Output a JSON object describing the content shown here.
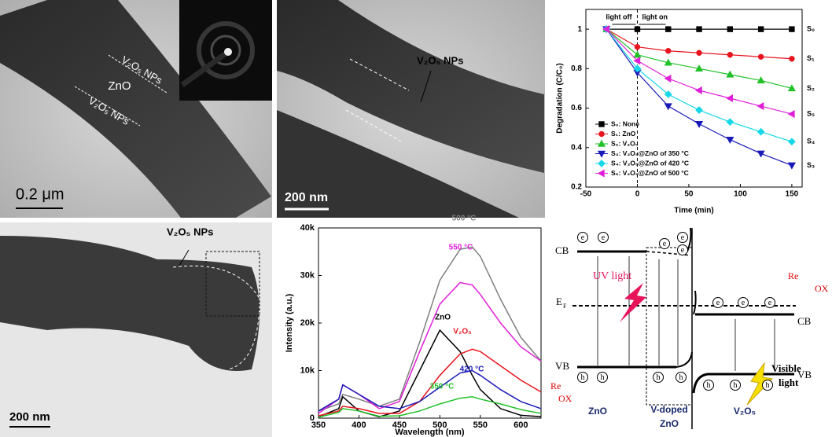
{
  "images": [
    {
      "labels": [
        "V₂O₅ NPs",
        "ZnO",
        "V₂O₅ NPs"
      ],
      "scale_bar": "0.2 μm"
    },
    {
      "labels": [
        "V₂O₅ NPs"
      ],
      "scale_bar": "200 nm"
    },
    {
      "labels": [
        "V₂O₅ NPs"
      ],
      "scale_bar": "200 nm"
    }
  ],
  "chart_data": [
    {
      "type": "line",
      "xlabel": "Time (min)",
      "ylabel": "Degradation (C/C₀)",
      "x": [
        -30,
        0,
        30,
        60,
        90,
        120,
        150
      ],
      "xlim": [
        -50,
        160
      ],
      "xticks": [
        -50,
        0,
        50,
        100,
        150
      ],
      "ylim": [
        0.2,
        1.1
      ],
      "yticks": [
        0.2,
        0.4,
        0.6,
        0.8,
        1.0
      ],
      "legend": "lower left",
      "vline": 0,
      "annotations": [
        "light off",
        "light on"
      ],
      "series": [
        {
          "name": "S₀: None",
          "end_label": "S₀",
          "color": "#000000",
          "marker": "square",
          "values": [
            1.0,
            1.0,
            1.0,
            1.0,
            1.0,
            1.0,
            1.0
          ]
        },
        {
          "name": "S₁: ZnO",
          "end_label": "S₁",
          "color": "#e8141e",
          "marker": "circle",
          "values": [
            1.0,
            0.91,
            0.89,
            0.88,
            0.87,
            0.86,
            0.85
          ]
        },
        {
          "name": "S₂: V₂O₅",
          "end_label": "S₂",
          "color": "#22c12a",
          "marker": "triangle",
          "values": [
            1.0,
            0.87,
            0.83,
            0.8,
            0.77,
            0.74,
            0.7
          ]
        },
        {
          "name": "S₃: V₂O₅@ZnO of 350 °C",
          "end_label": "S₃",
          "color": "#1a1ab8",
          "marker": "triangle-down",
          "values": [
            1.0,
            0.78,
            0.61,
            0.52,
            0.44,
            0.37,
            0.31
          ]
        },
        {
          "name": "S₄: V₂O₅@ZnO of 420 °C",
          "end_label": "S₄",
          "color": "#18d8e8",
          "marker": "diamond",
          "values": [
            1.0,
            0.8,
            0.67,
            0.59,
            0.53,
            0.48,
            0.43
          ]
        },
        {
          "name": "S₅: V₂O₅@ZnO of 500 °C",
          "end_label": "S₅",
          "color": "#e020d8",
          "marker": "triangle-left",
          "values": [
            1.0,
            0.84,
            0.75,
            0.69,
            0.65,
            0.61,
            0.57
          ]
        }
      ]
    },
    {
      "type": "line",
      "xlabel": "Wavelength (nm)",
      "ylabel": "Intensity (a.u.)",
      "x": [
        350,
        375,
        380,
        400,
        425,
        450,
        475,
        500,
        525,
        540,
        550,
        575,
        600,
        625
      ],
      "xlim": [
        350,
        625
      ],
      "xticks": [
        350,
        400,
        450,
        500,
        550,
        600
      ],
      "ylim": [
        0,
        40000
      ],
      "yticks": [
        0,
        {
          "value": 10000,
          "label": "10k"
        },
        {
          "value": 20000,
          "label": "20k"
        },
        {
          "value": 30000,
          "label": "30k"
        },
        {
          "value": 40000,
          "label": "40k"
        }
      ],
      "series": [
        {
          "name": "500 °C",
          "color": "#808080",
          "values": [
            1500,
            3000,
            5000,
            4000,
            2500,
            4000,
            16000,
            29000,
            35500,
            36000,
            34000,
            25000,
            17000,
            12000
          ]
        },
        {
          "name": "550 °C",
          "color": "#e020d8",
          "values": [
            1000,
            4000,
            7000,
            5000,
            2000,
            3500,
            14000,
            24000,
            28500,
            28000,
            26000,
            20000,
            15000,
            12000
          ]
        },
        {
          "name": "ZnO",
          "color": "#000000",
          "values": [
            300,
            2000,
            4500,
            1500,
            300,
            1500,
            10000,
            18500,
            14000,
            9000,
            6000,
            2000,
            600,
            300
          ]
        },
        {
          "name": "V₂O₅",
          "color": "#e8141e",
          "values": [
            500,
            1500,
            2500,
            2000,
            1000,
            1000,
            3500,
            9000,
            13500,
            14500,
            14000,
            11000,
            8000,
            5500
          ]
        },
        {
          "name": "420 °C",
          "color": "#1a1ab8",
          "values": [
            1500,
            4000,
            7000,
            5000,
            2500,
            2000,
            3500,
            6500,
            9500,
            10000,
            9000,
            6000,
            3500,
            2000
          ]
        },
        {
          "name": "350 °C",
          "color": "#22c12a",
          "values": [
            200,
            1200,
            2000,
            1500,
            400,
            500,
            1500,
            3000,
            4200,
            4500,
            4000,
            3000,
            1800,
            1000
          ]
        }
      ]
    }
  ],
  "diagram": {
    "cb": "CB",
    "vb": "VB",
    "ef": "E",
    "ef_sub": "F",
    "electron": "e",
    "hole": "h",
    "uv": "UV light",
    "visible": [
      "Visible",
      "light"
    ],
    "re": "Re",
    "ox": "OX",
    "regions": [
      "ZnO",
      "V-doped",
      "ZnO",
      "V₂O₅"
    ]
  }
}
